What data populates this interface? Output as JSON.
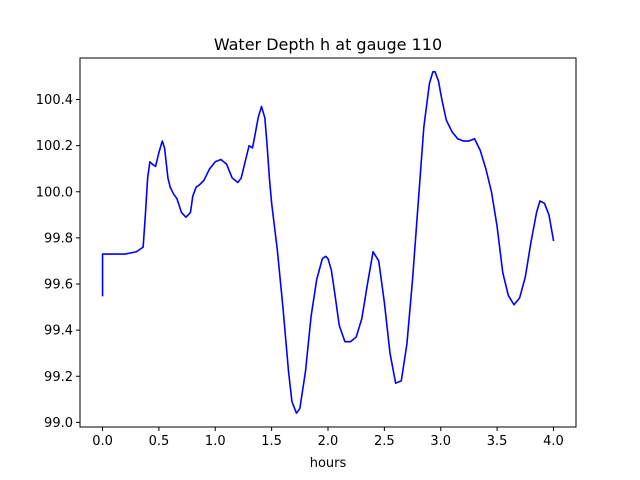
{
  "chart_data": {
    "type": "line",
    "title": "Water Depth h at gauge 110",
    "xlabel": "hours",
    "ylabel": "",
    "xlim": [
      -0.2,
      4.2
    ],
    "ylim": [
      98.98,
      100.58
    ],
    "xticks": [
      0.0,
      0.5,
      1.0,
      1.5,
      2.0,
      2.5,
      3.0,
      3.5,
      4.0
    ],
    "xtick_labels": [
      "0.0",
      "0.5",
      "1.0",
      "1.5",
      "2.0",
      "2.5",
      "3.0",
      "3.5",
      "4.0"
    ],
    "yticks": [
      99.0,
      99.2,
      99.4,
      99.6,
      99.8,
      100.0,
      100.2,
      100.4
    ],
    "ytick_labels": [
      "99.0",
      "99.2",
      "99.4",
      "99.6",
      "99.8",
      "100.0",
      "100.2",
      "100.4"
    ],
    "grid": false,
    "series": [
      {
        "color": "#0000ff",
        "x": [
          0.0,
          0.0,
          0.05,
          0.1,
          0.2,
          0.3,
          0.36,
          0.38,
          0.4,
          0.42,
          0.44,
          0.47,
          0.5,
          0.53,
          0.55,
          0.58,
          0.6,
          0.63,
          0.66,
          0.7,
          0.74,
          0.78,
          0.8,
          0.83,
          0.86,
          0.9,
          0.95,
          1.0,
          1.05,
          1.1,
          1.15,
          1.2,
          1.23,
          1.27,
          1.3,
          1.33,
          1.35,
          1.38,
          1.41,
          1.44,
          1.46,
          1.48,
          1.5,
          1.55,
          1.6,
          1.65,
          1.68,
          1.72,
          1.75,
          1.8,
          1.85,
          1.9,
          1.95,
          1.98,
          2.0,
          2.03,
          2.06,
          2.1,
          2.15,
          2.2,
          2.25,
          2.3,
          2.35,
          2.4,
          2.45,
          2.5,
          2.55,
          2.6,
          2.65,
          2.7,
          2.75,
          2.8,
          2.85,
          2.9,
          2.93,
          2.95,
          2.98,
          3.01,
          3.05,
          3.1,
          3.15,
          3.2,
          3.25,
          3.3,
          3.35,
          3.4,
          3.45,
          3.5,
          3.55,
          3.6,
          3.65,
          3.7,
          3.75,
          3.8,
          3.85,
          3.88,
          3.92,
          3.96,
          4.0
        ],
        "y": [
          99.55,
          99.73,
          99.73,
          99.73,
          99.73,
          99.74,
          99.76,
          99.9,
          100.06,
          100.13,
          100.12,
          100.11,
          100.17,
          100.22,
          100.19,
          100.06,
          100.02,
          99.99,
          99.97,
          99.91,
          99.89,
          99.91,
          99.98,
          100.02,
          100.03,
          100.05,
          100.1,
          100.13,
          100.14,
          100.12,
          100.06,
          100.04,
          100.06,
          100.14,
          100.2,
          100.19,
          100.24,
          100.32,
          100.37,
          100.32,
          100.2,
          100.06,
          99.95,
          99.75,
          99.5,
          99.22,
          99.09,
          99.04,
          99.06,
          99.22,
          99.46,
          99.62,
          99.71,
          99.72,
          99.71,
          99.66,
          99.56,
          99.42,
          99.35,
          99.35,
          99.37,
          99.45,
          99.6,
          99.74,
          99.7,
          99.52,
          99.3,
          99.17,
          99.18,
          99.34,
          99.62,
          99.95,
          100.28,
          100.47,
          100.52,
          100.52,
          100.48,
          100.4,
          100.31,
          100.26,
          100.23,
          100.22,
          100.22,
          100.23,
          100.18,
          100.1,
          100.0,
          99.85,
          99.65,
          99.55,
          99.51,
          99.54,
          99.63,
          99.78,
          99.91,
          99.96,
          99.95,
          99.9,
          99.79
        ]
      }
    ]
  }
}
